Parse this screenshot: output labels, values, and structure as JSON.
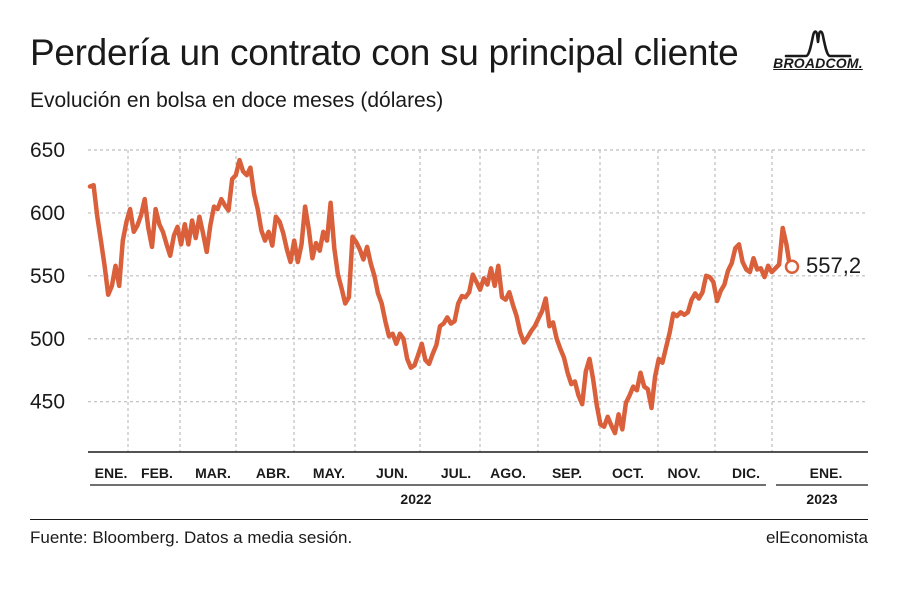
{
  "header": {
    "title": "Perdería un contrato con su principal cliente",
    "subtitle": "Evolución en bolsa en doce meses (dólares)",
    "logo_text": "BROADCOM."
  },
  "footer": {
    "source": "Fuente: Bloomberg. Datos a media sesión.",
    "brand": "elEconomista"
  },
  "colors": {
    "line": "#d9603b",
    "grid": "#bdbdbd",
    "text": "#1a1a1a"
  },
  "chart_data": {
    "type": "line",
    "title": "Perdería un contrato con su principal cliente",
    "subtitle": "Evolución en bolsa en doce meses (dólares)",
    "xlabel": "",
    "ylabel": "",
    "ylim": [
      415,
      655
    ],
    "yticks": [
      650,
      600,
      550,
      500,
      450
    ],
    "ytick_labels": [
      "650",
      "600",
      "550",
      "500",
      "450"
    ],
    "grid": true,
    "months": [
      "ENE.",
      "FEB.",
      "MAR.",
      "ABR.",
      "MAY.",
      "JUN.",
      "JUL.",
      "AGO.",
      "SEP.",
      "OCT.",
      "NOV.",
      "DIC.",
      "ENE."
    ],
    "years": [
      "2022",
      "2023"
    ],
    "last_value_label": "557,2",
    "series": [
      {
        "values": [
          621,
          622,
          597,
          578,
          558,
          535,
          542,
          558,
          542,
          578,
          593,
          603,
          585,
          590,
          598,
          611,
          588,
          573,
          603,
          591,
          585,
          575,
          566,
          582,
          589,
          575,
          591,
          575,
          594,
          580,
          597,
          584,
          569,
          590,
          605,
          603,
          611,
          606,
          602,
          627,
          630,
          642,
          633,
          630,
          636,
          615,
          603,
          586,
          578,
          585,
          574,
          597,
          593,
          584,
          571,
          561,
          578,
          561,
          575,
          605,
          587,
          564,
          576,
          570,
          585,
          578,
          608,
          572,
          551,
          540,
          528,
          533,
          581,
          577,
          571,
          563,
          573,
          560,
          550,
          536,
          528,
          514,
          502,
          504,
          496,
          504,
          500,
          484,
          477,
          479,
          487,
          496,
          483,
          480,
          488,
          495,
          510,
          512,
          517,
          512,
          514,
          528,
          534,
          533,
          537,
          551,
          545,
          539,
          548,
          543,
          556,
          542,
          558,
          533,
          531,
          537,
          527,
          518,
          505,
          497,
          501,
          506,
          510,
          516,
          522,
          532,
          510,
          513,
          500,
          492,
          485,
          473,
          464,
          466,
          455,
          448,
          474,
          484,
          468,
          447,
          432,
          430,
          438,
          431,
          425,
          440,
          428,
          449,
          455,
          462,
          459,
          473,
          462,
          460,
          445,
          470,
          484,
          481,
          493,
          505,
          520,
          518,
          521,
          519,
          521,
          531,
          536,
          532,
          537,
          550,
          549,
          545,
          530,
          538,
          543,
          554,
          560,
          572,
          575,
          561,
          555,
          553,
          564,
          555,
          556,
          549,
          558,
          553,
          556,
          559,
          588,
          575,
          557.2
        ]
      }
    ]
  }
}
